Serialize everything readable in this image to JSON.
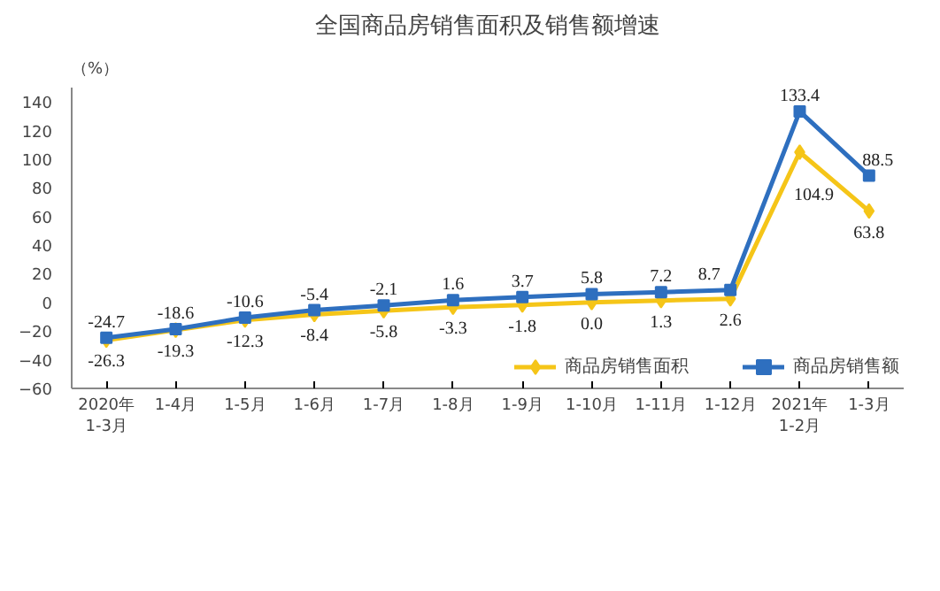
{
  "chart_data": {
    "type": "line",
    "title": "全国商品房销售面积及销售额增速",
    "ylabel": "（%）",
    "categories": [
      "2020年\n1-3月",
      "1-4月",
      "1-5月",
      "1-6月",
      "1-7月",
      "1-8月",
      "1-9月",
      "1-10月",
      "1-11月",
      "1-12月",
      "2021年\n1-2月",
      "1-3月"
    ],
    "series": [
      {
        "name": "商品房销售面积",
        "color": "#f5c518",
        "marker": "diamond",
        "values": [
          -26.3,
          -19.3,
          -12.3,
          -8.4,
          -5.8,
          -3.3,
          -1.8,
          0.0,
          1.3,
          2.6,
          104.9,
          63.8
        ],
        "value_labels": [
          "-26.3",
          "-19.3",
          "-12.3",
          "-8.4",
          "-5.8",
          "-3.3",
          "-1.8",
          "0.0",
          "1.3",
          "2.6",
          "104.9",
          "63.8"
        ]
      },
      {
        "name": "商品房销售额",
        "color": "#2e6fbf",
        "marker": "square",
        "values": [
          -24.7,
          -18.6,
          -10.6,
          -5.4,
          -2.1,
          1.6,
          3.7,
          5.8,
          7.2,
          8.7,
          133.4,
          88.5
        ],
        "value_labels": [
          "-24.7",
          "-18.6",
          "-10.6",
          "-5.4",
          "-2.1",
          "1.6",
          "3.7",
          "5.8",
          "7.2",
          "8.7",
          "133.4",
          "88.5"
        ]
      }
    ],
    "ylim": [
      -60,
      150
    ],
    "yticks": [
      -60,
      -40,
      -20,
      0,
      20,
      40,
      60,
      80,
      100,
      120,
      140
    ],
    "grid": false,
    "legend": "bottom",
    "line_style": "solid"
  }
}
